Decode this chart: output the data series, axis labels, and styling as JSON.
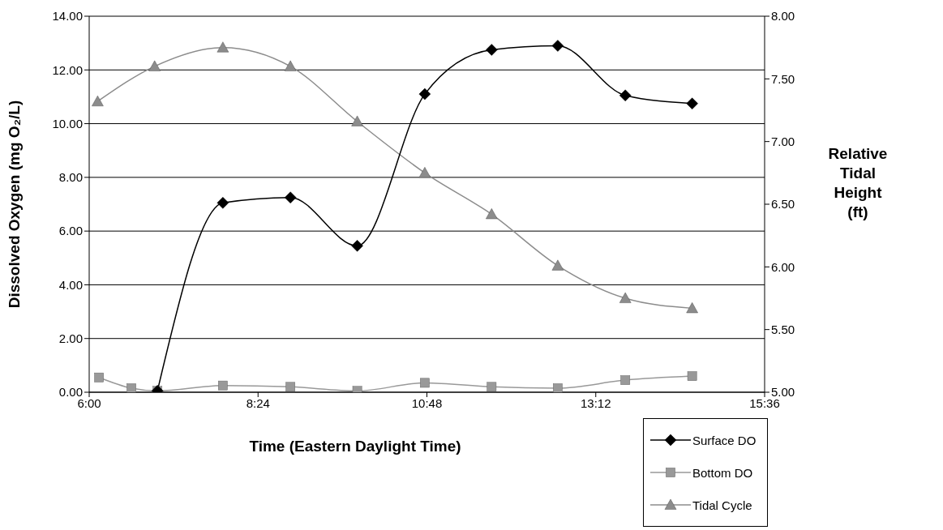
{
  "chart_data": {
    "type": "line",
    "xlabel": "Time (Eastern Daylight Time)",
    "ylabel": "Dissolved Oxygen (mg O₂/L)",
    "y2label": "Relative Tidal Height (ft)",
    "xlim": [
      6,
      15.6
    ],
    "xticks": [
      {
        "value": 6,
        "label": "6:00"
      },
      {
        "value": 8.4,
        "label": "8:24"
      },
      {
        "value": 10.8,
        "label": "10:48"
      },
      {
        "value": 13.2,
        "label": "13:12"
      },
      {
        "value": 15.6,
        "label": "15:36"
      }
    ],
    "ylim": [
      0,
      14
    ],
    "yticks": [
      {
        "value": 0,
        "label": "0.00"
      },
      {
        "value": 2,
        "label": "2.00"
      },
      {
        "value": 4,
        "label": "4.00"
      },
      {
        "value": 6,
        "label": "6.00"
      },
      {
        "value": 8,
        "label": "8.00"
      },
      {
        "value": 10,
        "label": "10.00"
      },
      {
        "value": 12,
        "label": "12.00"
      },
      {
        "value": 14,
        "label": "14.00"
      }
    ],
    "y2lim": [
      5,
      8
    ],
    "y2ticks": [
      {
        "value": 5,
        "label": "5.00"
      },
      {
        "value": 5.5,
        "label": "5.50"
      },
      {
        "value": 6,
        "label": "6.00"
      },
      {
        "value": 6.5,
        "label": "6.50"
      },
      {
        "value": 7,
        "label": "7.00"
      },
      {
        "value": 7.5,
        "label": "7.50"
      },
      {
        "value": 8,
        "label": "8.00"
      }
    ],
    "grid": "y",
    "legend": "bottom right",
    "line_style": "solid",
    "series": [
      {
        "name": "Surface DO",
        "color": "#000000",
        "marker": "diamond",
        "x": [
          6.97,
          7.9,
          8.86,
          9.81,
          10.77,
          11.72,
          12.66,
          13.62,
          14.57
        ],
        "values": [
          0.05,
          7.05,
          7.25,
          5.45,
          11.1,
          12.75,
          12.9,
          11.05,
          10.75
        ]
      },
      {
        "name": "Bottom DO",
        "color": "#999999",
        "marker": "square",
        "x": [
          6.14,
          6.6,
          6.97,
          7.9,
          8.86,
          9.81,
          10.77,
          11.72,
          12.66,
          13.62,
          14.57
        ],
        "values": [
          0.55,
          0.15,
          0.05,
          0.25,
          0.2,
          0.05,
          0.35,
          0.2,
          0.15,
          0.45,
          0.6
        ]
      },
      {
        "name": "Tidal Cycle",
        "color": "#8c8c8c",
        "marker": "triangle",
        "axis": "y2",
        "x": [
          6.12,
          6.93,
          7.9,
          8.86,
          9.81,
          10.77,
          11.72,
          12.66,
          13.62,
          14.57
        ],
        "values": [
          7.32,
          7.6,
          7.75,
          7.6,
          7.16,
          6.75,
          6.42,
          6.01,
          5.75,
          5.67
        ]
      }
    ]
  }
}
